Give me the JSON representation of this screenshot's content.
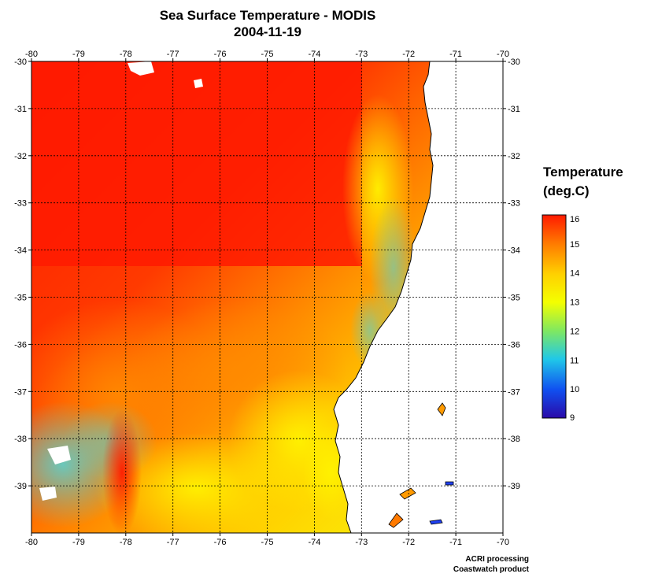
{
  "title": {
    "line1": "Sea Surface Temperature - MODIS",
    "line2": "2004-11-19"
  },
  "map": {
    "lon_ticks": [
      "-80",
      "-79",
      "-78",
      "-77",
      "-76",
      "-75",
      "-74",
      "-73",
      "-72",
      "-71",
      "-70"
    ],
    "lat_ticks": [
      "-30",
      "-31",
      "-32",
      "-33",
      "-34",
      "-35",
      "-36",
      "-37",
      "-38",
      "-39"
    ],
    "lon_range": [
      -80,
      -70
    ],
    "lat_range": [
      -30,
      -40
    ],
    "grid": "dotted",
    "land_color": "#ffffff"
  },
  "legend": {
    "title_line1": "Temperature",
    "title_line2": "(deg.C)",
    "labels": [
      "16",
      "15",
      "14",
      "13",
      "12",
      "11",
      "10",
      "9"
    ],
    "range": [
      9,
      16
    ],
    "colors": [
      "#ff1a00",
      "#ff7a00",
      "#ffd000",
      "#f4ff00",
      "#a6f040",
      "#30d6c0",
      "#0aa0ff",
      "#1030e0",
      "#2a0aa8"
    ]
  },
  "credits": {
    "line1": "ACRI processing",
    "line2": "Coastwatch product"
  }
}
